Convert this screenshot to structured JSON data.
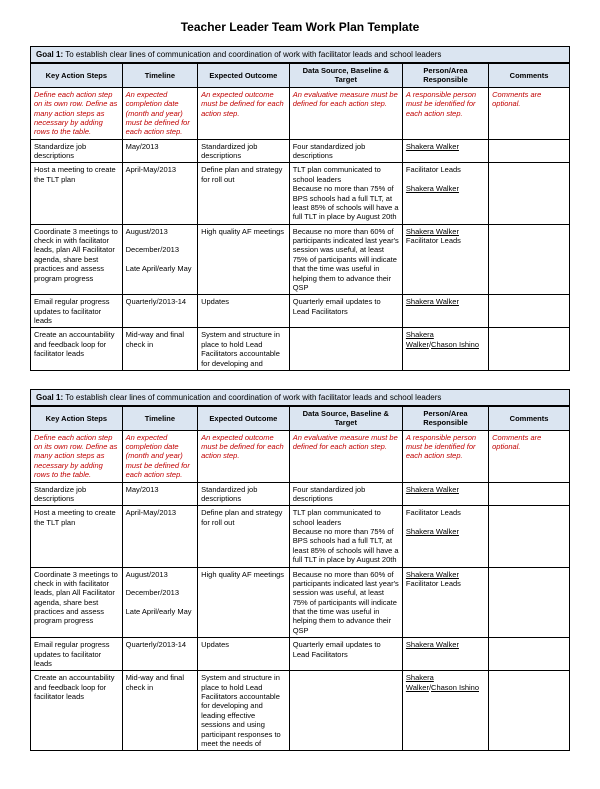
{
  "page_title": "Teacher Leader Team Work Plan Template",
  "columns": [
    "Key Action Steps",
    "Timeline",
    "Expected Outcome",
    "Data Source, Baseline & Target",
    "Person/Area Responsible",
    "Comments"
  ],
  "sections": [
    {
      "goal_label": "Goal 1:",
      "goal_text": "To establish clear lines of communication and coordination of work with facilitator leads and school leaders",
      "instruction_row": {
        "action": "Define each action step on its own row. Define as many action steps as necessary by adding rows to the table.",
        "timeline": "An expected completion date (month and year) must be defined for each action step.",
        "outcome": "An expected outcome must be defined for each action step.",
        "data": "An evaluative measure must be defined for each action step.",
        "person": "A responsible person must be identified for each action step.",
        "comments": "Comments are optional."
      },
      "rows": [
        {
          "action": "Standardize job descriptions",
          "timeline": "May/2013",
          "outcome": "Standardized job descriptions",
          "data": "Four standardized job descriptions",
          "person_links": [
            "Shakera Walker"
          ],
          "comments": ""
        },
        {
          "action": "Host a meeting to create the TLT plan",
          "timeline": "April-May/2013",
          "outcome": "Define plan and strategy for roll out",
          "data": "TLT plan communicated to school leaders\nBecause no more than 75% of BPS schools had a full TLT, at least 85% of schools will have a full TLT in place by August 20th",
          "person_plain": "Facilitator Leads",
          "person_links": [
            "Shakera Walker"
          ],
          "comments": ""
        },
        {
          "action": "Coordinate 3 meetings to check in with facilitator leads, plan All Facilitator agenda, share best practices and assess program progress",
          "timeline": "August/2013\n\nDecember/2013\n\nLate April/early May",
          "outcome": "High quality AF meetings",
          "data": "Because no more than 60% of participants indicated last year's session was useful, at least 75% of participants will indicate that the time was useful in helping them to advance their QSP",
          "person_links": [
            "Shakera Walker"
          ],
          "person_plain_after": "Facilitator Leads",
          "comments": ""
        },
        {
          "action": "Email regular progress updates to facilitator leads",
          "timeline": "Quarterly/2013-14",
          "outcome": "Updates",
          "data": "Quarterly email updates to Lead Facilitators",
          "person_links": [
            "Shakera Walker"
          ],
          "comments": ""
        },
        {
          "action": "Create an accountability and feedback loop for facilitator leads",
          "timeline": "Mid-way and final check in",
          "outcome": "System and structure in place to hold Lead Facilitators accountable for developing and",
          "data": "",
          "person_links": [
            "Shakera Walker",
            "Chason Ishino"
          ],
          "person_sep": "/",
          "comments": ""
        }
      ]
    },
    {
      "goal_label": "Goal 1:",
      "goal_text": "To establish clear lines of communication and coordination of work with facilitator leads and school leaders",
      "instruction_row": {
        "action": "Define each action step on its own row. Define as many action steps as necessary by adding rows to the table.",
        "timeline": "An expected completion date (month and year) must be defined for each action step.",
        "outcome": "An expected outcome must be defined for each action step.",
        "data": "An evaluative measure must be defined for each action step.",
        "person": "A responsible person must be identified for each action step.",
        "comments": "Comments are optional."
      },
      "rows": [
        {
          "action": "Standardize job descriptions",
          "timeline": "May/2013",
          "outcome": "Standardized job descriptions",
          "data": "Four standardized job descriptions",
          "person_links": [
            "Shakera Walker"
          ],
          "comments": ""
        },
        {
          "action": "Host a meeting to create the TLT plan",
          "timeline": "April-May/2013",
          "outcome": "Define plan and strategy for roll out",
          "data": "TLT plan communicated to school leaders\nBecause no more than 75% of BPS schools had a full TLT, at least 85% of schools will have a full TLT in place by August 20th",
          "person_plain": "Facilitator Leads",
          "person_links": [
            "Shakera Walker"
          ],
          "comments": ""
        },
        {
          "action": "Coordinate 3 meetings to check in with facilitator leads, plan All Facilitator agenda, share best practices and assess program progress",
          "timeline": "August/2013\n\nDecember/2013\n\nLate April/early May",
          "outcome": "High quality AF meetings",
          "data": "Because no more than 60% of participants indicated last year's session was useful, at least 75% of participants will indicate that the time was useful in helping them to advance their QSP",
          "person_links": [
            "Shakera Walker"
          ],
          "person_plain_after": "Facilitator Leads",
          "comments": ""
        },
        {
          "action": "Email regular progress updates to facilitator leads",
          "timeline": "Quarterly/2013-14",
          "outcome": "Updates",
          "data": "Quarterly email updates to Lead Facilitators",
          "person_links": [
            "Shakera Walker"
          ],
          "comments": ""
        },
        {
          "action": "Create an accountability and feedback loop for facilitator leads",
          "timeline": "Mid-way and final check in",
          "outcome": "System and structure in place to hold Lead Facilitators accountable for developing and leading effective sessions and using participant responses to meet the needs of",
          "data": "",
          "person_links": [
            "Shakera Walker",
            "Chason Ishino"
          ],
          "person_sep": "/",
          "comments": ""
        }
      ]
    }
  ]
}
